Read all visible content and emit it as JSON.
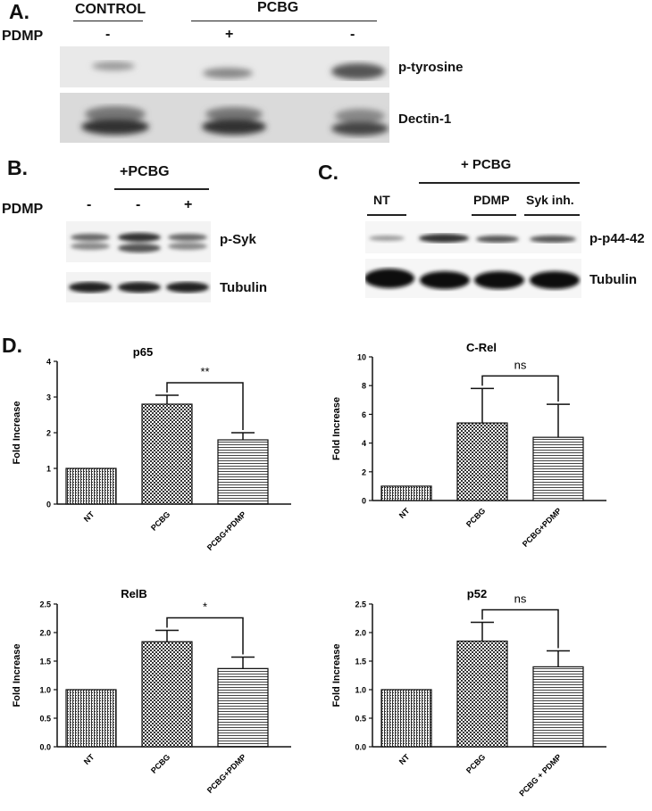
{
  "panel_a": {
    "label": "A.",
    "control": "CONTROL",
    "treatment": "PCBG",
    "row_label": "PDMP",
    "signs": [
      "-",
      "+",
      "-"
    ],
    "bands": [
      "p-tyrosine",
      "Dectin-1"
    ]
  },
  "panel_b": {
    "label": "B.",
    "treatment": "+PCBG",
    "row_label": "PDMP",
    "signs": [
      "-",
      "-",
      "+"
    ],
    "bands": [
      "p-Syk",
      "Tubulin"
    ]
  },
  "panel_c": {
    "label": "C.",
    "treatment": "+ PCBG",
    "lanes": [
      "NT",
      "PDMP",
      "Syk inh."
    ],
    "bands": [
      "p-p44-42",
      "Tubulin"
    ]
  },
  "panel_d": {
    "label": "D."
  },
  "colors": {
    "ink": "#111111",
    "bar_fill": "#ffffff",
    "pattern": "#333333",
    "background": "#ffffff"
  },
  "chart_data": [
    {
      "type": "bar",
      "title": "p65",
      "ylabel": "Fold Increase",
      "xlabel": "",
      "categories": [
        "NT",
        "PCBG",
        "PCBG+PDMP"
      ],
      "values": [
        1.0,
        2.8,
        1.8
      ],
      "errors": [
        0,
        0.25,
        0.2
      ],
      "ylim": [
        0,
        4
      ],
      "yticks": [
        "0",
        "1",
        "2",
        "3",
        "4"
      ],
      "significance": {
        "from": 1,
        "to": 2,
        "label": "**"
      }
    },
    {
      "type": "bar",
      "title": "C-Rel",
      "ylabel": "Fold Increase",
      "xlabel": "",
      "categories": [
        "NT",
        "PCBG",
        "PCBG+PDMP"
      ],
      "values": [
        1.0,
        5.4,
        4.4
      ],
      "errors": [
        0,
        2.4,
        2.3
      ],
      "ylim": [
        0,
        10
      ],
      "yticks": [
        "0",
        "2",
        "4",
        "6",
        "8",
        "10"
      ],
      "significance": {
        "from": 1,
        "to": 2,
        "label": "ns"
      }
    },
    {
      "type": "bar",
      "title": "RelB",
      "ylabel": "Fold Increase",
      "xlabel": "",
      "categories": [
        "NT",
        "PCBG",
        "PCBG+PDMP"
      ],
      "values": [
        1.0,
        1.84,
        1.37
      ],
      "errors": [
        0,
        0.2,
        0.2
      ],
      "ylim": [
        0,
        2.5
      ],
      "yticks": [
        "0.0",
        "0.5",
        "1.0",
        "1.5",
        "2.0",
        "2.5"
      ],
      "significance": {
        "from": 1,
        "to": 2,
        "label": "*"
      }
    },
    {
      "type": "bar",
      "title": "p52",
      "ylabel": "Fold Increase",
      "xlabel": "",
      "categories": [
        "NT",
        "PCBG",
        "PCBG + PDMP"
      ],
      "values": [
        1.0,
        1.85,
        1.4
      ],
      "errors": [
        0,
        0.33,
        0.28
      ],
      "ylim": [
        0,
        2.5
      ],
      "yticks": [
        "0.0",
        "0.5",
        "1.0",
        "1.5",
        "2.0",
        "2.5"
      ],
      "significance": {
        "from": 1,
        "to": 2,
        "label": "ns"
      }
    }
  ]
}
